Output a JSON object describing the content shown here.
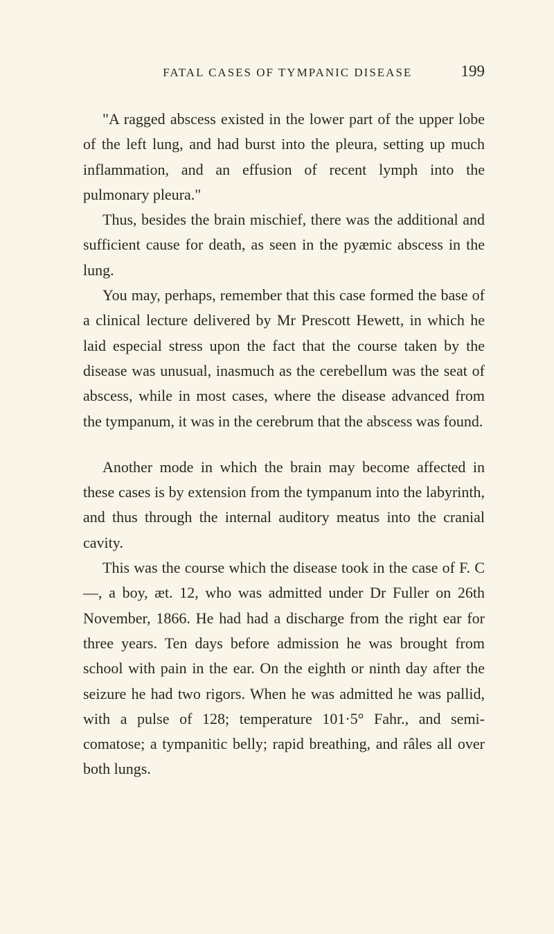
{
  "header": {
    "running_title": "FATAL CASES OF TYMPANIC DISEASE",
    "page_number": "199"
  },
  "paragraphs": {
    "p1": "\"A ragged abscess existed in the lower part of the upper lobe of the left lung, and had burst into the pleura, setting up much inflammation, and an effusion of recent lymph into the pulmonary pleura.\"",
    "p2": "Thus, besides the brain mischief, there was the additional and sufficient cause for death, as seen in the pyæmic abscess in the lung.",
    "p3": "You may, perhaps, remember that this case formed the base of a clinical lecture delivered by Mr Prescott Hewett, in which he laid especial stress upon the fact that the course taken by the disease was unusual, inasmuch as the cerebellum was the seat of abscess, while in most cases, where the disease advanced from the tympanum, it was in the cerebrum that the abscess was found.",
    "p4": "Another mode in which the brain may become affected in these cases is by extension from the tympanum into the labyrinth, and thus through the internal auditory meatus into the cranial cavity.",
    "p5": "This was the course which the disease took in the case of F. C—, a boy, æt. 12, who was admitted under Dr Fuller on 26th November, 1866. He had had a discharge from the right ear for three years. Ten days before admission he was brought from school with pain in the ear. On the eighth or ninth day after the seizure he had two rigors. When he was admitted he was pallid, with a pulse of 128; temperature 101·5° Fahr., and semi-comatose; a tympanitic belly; rapid breathing, and râles all over both lungs."
  }
}
